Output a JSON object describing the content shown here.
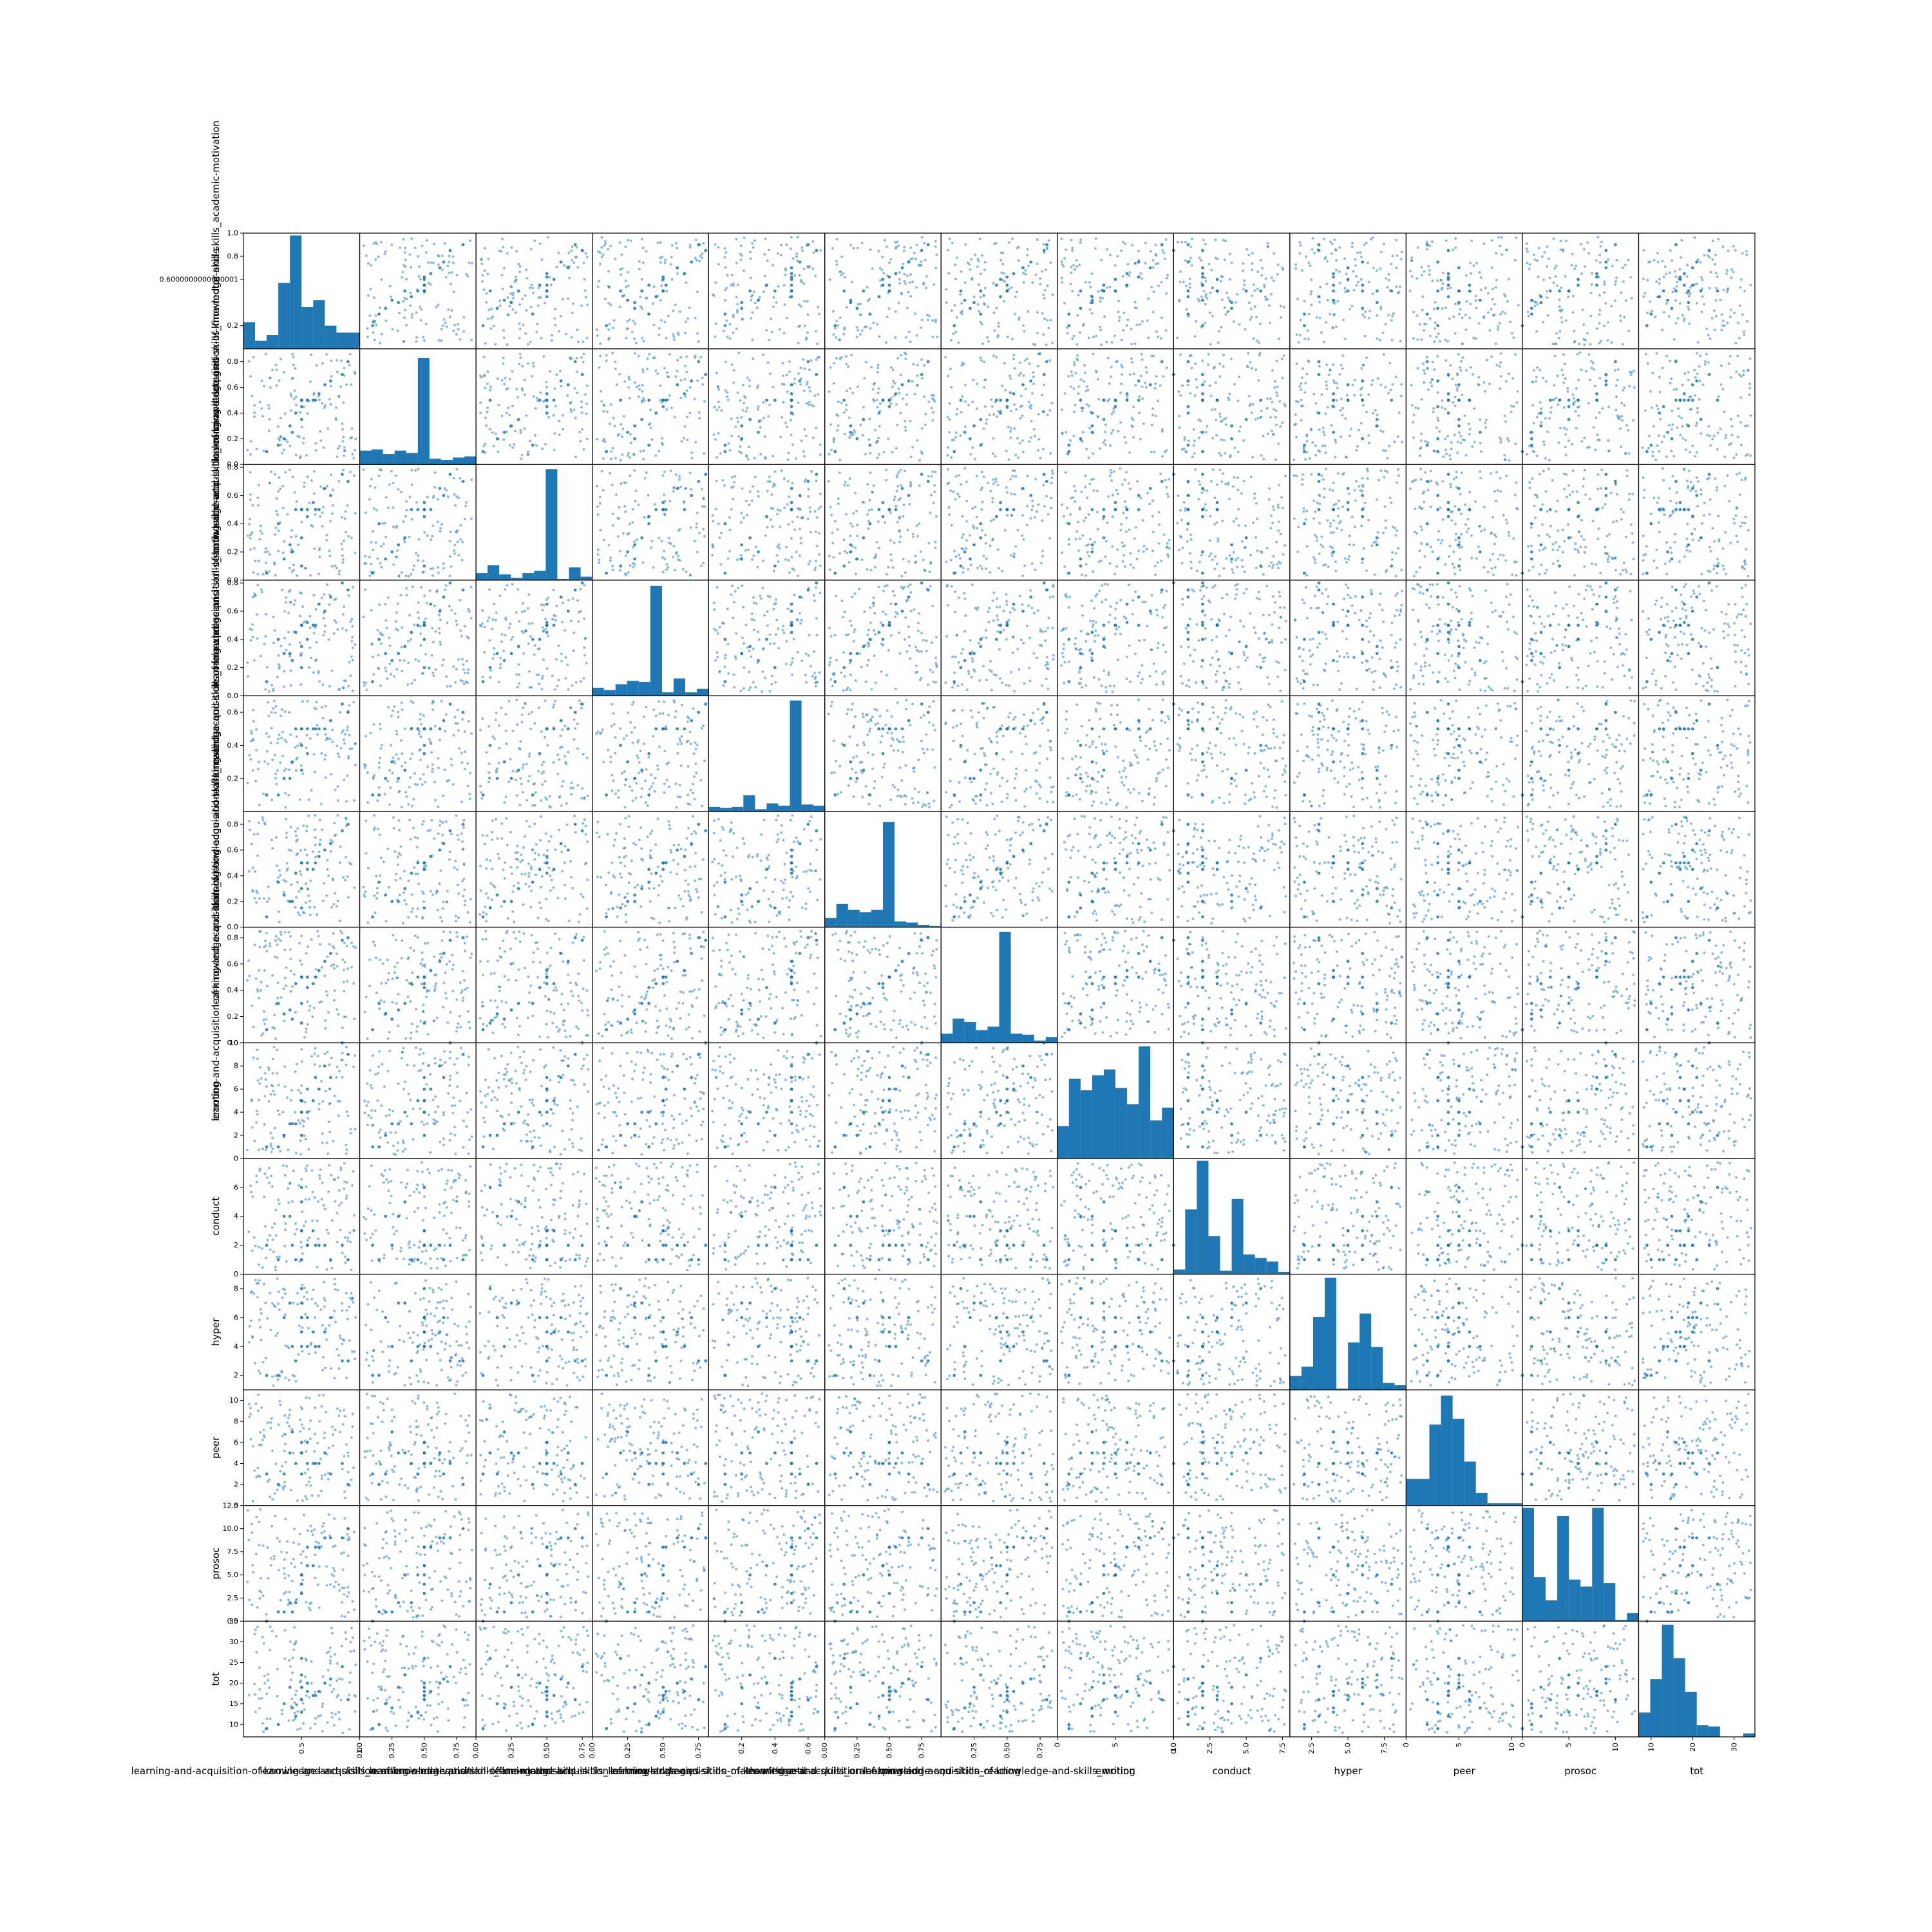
{
  "chart_data": {
    "type": "scatter",
    "title": "",
    "grid": false,
    "legend": false,
    "histogram_on_diagonal": true,
    "marker_color": "#1f77b4",
    "variables": [
      "learning-and-acquisition-of-knowledge-and-skills_academic-motivation",
      "learning-and-acquisition-of-knowledge-and-skills_fine-motor-skills",
      "learning-and-acquisition-of-knowledge-and-skills_learning-strategies",
      "learning-and-acquisition-of-knowledge-and-skills_math-arithmetic",
      "learning-and-acquisition-of-knowledge-and-skills_oral-expression",
      "learning-and-acquisition-of-knowledge-and-skills_reading",
      "learning-and-acquisition-of-knowledge-and-skills_writing",
      "emotion",
      "conduct",
      "hyper",
      "peer",
      "prosoc",
      "tot"
    ],
    "x_axis_labels": [
      "learning-and-acquisition-of-knowledge-and-skills_academic-motivation",
      "learning-and-acquisition-of-knowledge-and-skills_fine-motor-skills",
      "learning-and-acquisition-of-knowledge-and-skills_learning-strategies",
      "learning-and-acquisition-of-knowledge-and-skills_math-arithmetic",
      "learning-and-acquisition-of-knowledge-and-skills_oral-expression",
      "learning-and-acquisition-of-knowledge-and-skills_reading",
      "learning-and-acquisition-of-knowledge-and-skills_writing",
      "emotion",
      "conduct",
      "hyper",
      "peer",
      "prosoc",
      "tot"
    ],
    "y_axis_labels": [
      "learning-and-acquisition-of-knowledge-and-skills_academic-motivation",
      "learning-and-acquisition-of-knowledge-and-skills_fine-motor-skills",
      "learning-and-acquisition-of-knowledge-and-skills_learning-strategies",
      "learning-and-acquisition-of-knowledge-and-skills_math-arithmetic",
      "learning-and-acquisition-of-knowledge-and-skills_oral-expression",
      "learning-and-acquisition-of-knowledge-and-skills_reading",
      "learning-and-acquisition-of-knowledge-and-skills_writing",
      "emotion",
      "conduct",
      "hyper",
      "peer",
      "prosoc",
      "tot"
    ],
    "ranges": [
      [
        0.0,
        1.0
      ],
      [
        0.0,
        0.9
      ],
      [
        0.0,
        0.82
      ],
      [
        0.0,
        0.82
      ],
      [
        0.0,
        0.7
      ],
      [
        0.0,
        0.9
      ],
      [
        0.0,
        0.88
      ],
      [
        0.0,
        10.0
      ],
      [
        0.0,
        8.0
      ],
      [
        1.0,
        9.0
      ],
      [
        0.0,
        11.0
      ],
      [
        0.0,
        12.5
      ],
      [
        7.0,
        35.0
      ]
    ],
    "x_ticks": [
      [
        "0.5",
        "1.0"
      ],
      [
        "0.00",
        "0.25",
        "0.50",
        "0.75"
      ],
      [
        "0.00",
        "0.25",
        "0.50",
        "0.75"
      ],
      [
        "0.00",
        "0.25",
        "0.50",
        "0.75"
      ],
      [
        "0.2",
        "0.4",
        "0.6"
      ],
      [
        "0.00",
        "0.25",
        "0.50",
        "0.75"
      ],
      [
        "0.25",
        "0.50",
        "0.75"
      ],
      [
        "0",
        "5",
        "10"
      ],
      [
        "0.0",
        "2.5",
        "5.0",
        "7.5"
      ],
      [
        "2.5",
        "5.0",
        "7.5"
      ],
      [
        "0",
        "5",
        "10"
      ],
      [
        "0",
        "5",
        "10"
      ],
      [
        "10",
        "20",
        "30"
      ]
    ],
    "y_ticks": [
      [
        "0.2",
        "0.6000000000000001",
        "0.8",
        "1.0"
      ],
      [
        "0.0",
        "0.2",
        "0.4",
        "0.6",
        "0.8"
      ],
      [
        "0.0",
        "0.2",
        "0.4",
        "0.6",
        "0.8"
      ],
      [
        "0.0",
        "0.2",
        "0.4",
        "0.6",
        "0.8"
      ],
      [
        "0.2",
        "0.4",
        "0.6"
      ],
      [
        "0.0",
        "0.2",
        "0.4",
        "0.6",
        "0.8"
      ],
      [
        "0.0",
        "0.2",
        "0.4",
        "0.6",
        "0.8"
      ],
      [
        "0",
        "2",
        "4",
        "6",
        "8",
        "10"
      ],
      [
        "0",
        "2",
        "4",
        "6"
      ],
      [
        "2",
        "4",
        "6",
        "8"
      ],
      [
        "0",
        "2",
        "4",
        "6",
        "8",
        "10"
      ],
      [
        "0.0",
        "2.5",
        "5.0",
        "7.5",
        "10.0",
        "12.5"
      ],
      [
        "10",
        "15",
        "20",
        "25",
        "30",
        "35"
      ]
    ],
    "histograms": [
      [
        0.23,
        0.07,
        0.12,
        0.57,
        0.98,
        0.36,
        0.42,
        0.2,
        0.14,
        0.14
      ],
      [
        0.12,
        0.13,
        0.09,
        0.12,
        0.1,
        0.92,
        0.05,
        0.04,
        0.06,
        0.07
      ],
      [
        0.06,
        0.13,
        0.05,
        0.02,
        0.06,
        0.08,
        0.96,
        0.01,
        0.11,
        0.03
      ],
      [
        0.07,
        0.05,
        0.1,
        0.13,
        0.12,
        0.95,
        0.03,
        0.15,
        0.03,
        0.06
      ],
      [
        0.04,
        0.03,
        0.04,
        0.14,
        0.02,
        0.07,
        0.05,
        0.96,
        0.06,
        0.05
      ],
      [
        0.08,
        0.2,
        0.15,
        0.13,
        0.15,
        0.91,
        0.05,
        0.04,
        0.02,
        0.01
      ],
      [
        0.08,
        0.21,
        0.18,
        0.11,
        0.14,
        0.96,
        0.08,
        0.07,
        0.02,
        0.05
      ],
      [
        0.28,
        0.69,
        0.59,
        0.72,
        0.77,
        0.61,
        0.47,
        0.97,
        0.33,
        0.44
      ],
      [
        0.04,
        0.56,
        0.98,
        0.33,
        0.03,
        0.65,
        0.17,
        0.14,
        0.11,
        0.02
      ],
      [
        0.12,
        0.2,
        0.63,
        0.97,
        0.01,
        0.41,
        0.66,
        0.37,
        0.06,
        0.04
      ],
      [
        0.23,
        0.23,
        0.7,
        0.95,
        0.75,
        0.38,
        0.11,
        0.02,
        0.02,
        0.02
      ],
      [
        0.98,
        0.38,
        0.18,
        0.91,
        0.36,
        0.3,
        0.98,
        0.33,
        0.01,
        0.07
      ],
      [
        0.21,
        0.5,
        0.97,
        0.68,
        0.39,
        0.1,
        0.09,
        0.0,
        0.0,
        0.03
      ]
    ],
    "sample_points": [
      [
        0.62,
        0.5,
        0.5,
        0.5,
        0.5,
        0.5,
        0.5,
        7,
        2,
        4,
        4,
        8,
        17
      ],
      [
        0.5,
        0.5,
        0.5,
        0.5,
        0.5,
        0.5,
        0.5,
        5,
        3,
        6,
        5,
        5,
        19
      ],
      [
        0.45,
        0.4,
        0.5,
        0.45,
        0.5,
        0.42,
        0.45,
        3,
        1,
        3,
        4,
        2,
        12
      ],
      [
        0.7,
        0.62,
        0.65,
        0.6,
        0.5,
        0.6,
        0.62,
        8,
        2,
        5,
        5,
        9,
        20
      ],
      [
        0.35,
        0.2,
        0.15,
        0.3,
        0.2,
        0.25,
        0.22,
        2,
        4,
        6,
        3,
        1,
        15
      ],
      [
        0.55,
        0.5,
        0.5,
        0.52,
        0.5,
        0.5,
        0.5,
        6,
        2,
        4,
        6,
        8,
        18
      ],
      [
        0.9,
        0.8,
        0.7,
        0.75,
        0.6,
        0.8,
        0.8,
        9,
        1,
        3,
        2,
        10,
        16
      ],
      [
        0.2,
        0.1,
        0.05,
        0.1,
        0.1,
        0.08,
        0.1,
        1,
        2,
        2,
        3,
        0,
        9
      ],
      [
        0.5,
        0.35,
        0.3,
        0.35,
        0.25,
        0.3,
        0.3,
        4,
        5,
        7,
        5,
        5,
        22
      ],
      [
        0.6,
        0.5,
        0.55,
        0.5,
        0.5,
        0.45,
        0.45,
        5,
        3,
        5,
        4,
        6,
        17
      ],
      [
        0.42,
        0.25,
        0.2,
        0.25,
        0.3,
        0.2,
        0.18,
        3,
        2,
        4,
        7,
        1,
        14
      ],
      [
        0.75,
        0.65,
        0.6,
        0.7,
        0.55,
        0.65,
        0.68,
        7,
        1,
        6,
        3,
        9,
        21
      ],
      [
        0.5,
        0.5,
        0.1,
        0.2,
        0.4,
        0.15,
        0.15,
        2,
        6,
        8,
        5,
        4,
        26
      ],
      [
        0.3,
        0.15,
        0.4,
        0.4,
        0.1,
        0.35,
        0.3,
        1,
        1,
        2,
        2,
        1,
        10
      ],
      [
        0.65,
        0.55,
        0.5,
        0.65,
        0.5,
        0.55,
        0.55,
        6,
        2,
        4,
        4,
        8,
        18
      ],
      [
        0.5,
        0.5,
        0.5,
        0.5,
        0.5,
        0.5,
        0.5,
        4,
        3,
        5,
        6,
        3,
        16
      ],
      [
        0.85,
        0.7,
        0.75,
        0.8,
        0.65,
        0.75,
        0.78,
        10,
        2,
        3,
        4,
        9,
        24
      ],
      [
        0.4,
        0.3,
        0.25,
        0.3,
        0.2,
        0.2,
        0.25,
        3,
        4,
        7,
        5,
        2,
        19
      ],
      [
        0.5,
        0.45,
        0.5,
        0.5,
        0.5,
        0.5,
        0.5,
        5,
        1,
        4,
        3,
        5,
        13
      ],
      [
        0.55,
        0.5,
        0.45,
        0.4,
        0.35,
        0.45,
        0.42,
        4,
        2,
        6,
        4,
        6,
        20
      ]
    ]
  }
}
